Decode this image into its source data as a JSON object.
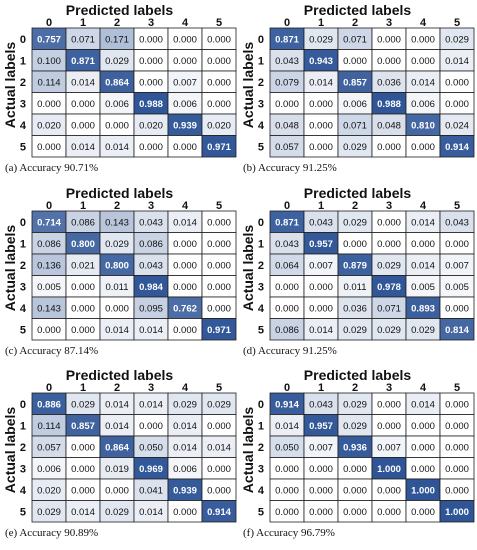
{
  "chart_data": [
    {
      "type": "heatmap",
      "title": "Predicted labels",
      "ylabel": "Actual labels",
      "caption": "(a) Accuracy 90.71%",
      "categories": [
        "0",
        "1",
        "2",
        "3",
        "4",
        "5"
      ],
      "values": [
        [
          "0.757",
          "0.071",
          "0.171",
          "0.000",
          "0.000",
          "0.000"
        ],
        [
          "0.100",
          "0.871",
          "0.029",
          "0.000",
          "0.000",
          "0.000"
        ],
        [
          "0.114",
          "0.014",
          "0.864",
          "0.000",
          "0.007",
          "0.000"
        ],
        [
          "0.000",
          "0.000",
          "0.006",
          "0.988",
          "0.006",
          "0.000"
        ],
        [
          "0.020",
          "0.000",
          "0.000",
          "0.020",
          "0.939",
          "0.020"
        ],
        [
          "0.000",
          "0.014",
          "0.014",
          "0.000",
          "0.000",
          "0.971"
        ]
      ]
    },
    {
      "type": "heatmap",
      "title": "Predicted labels",
      "ylabel": "Actual labels",
      "caption": "(b) Accuracy 91.25%",
      "categories": [
        "0",
        "1",
        "2",
        "3",
        "4",
        "5"
      ],
      "values": [
        [
          "0.871",
          "0.029",
          "0.071",
          "0.000",
          "0.000",
          "0.029"
        ],
        [
          "0.043",
          "0.943",
          "0.000",
          "0.000",
          "0.000",
          "0.014"
        ],
        [
          "0.079",
          "0.014",
          "0.857",
          "0.036",
          "0.014",
          "0.000"
        ],
        [
          "0.000",
          "0.000",
          "0.006",
          "0.988",
          "0.006",
          "0.000"
        ],
        [
          "0.048",
          "0.000",
          "0.071",
          "0.048",
          "0.810",
          "0.024"
        ],
        [
          "0.057",
          "0.000",
          "0.029",
          "0.000",
          "0.000",
          "0.914"
        ]
      ]
    },
    {
      "type": "heatmap",
      "title": "Predicted labels",
      "ylabel": "Actual labels",
      "caption": "(c) Accuracy 87.14%",
      "categories": [
        "0",
        "1",
        "2",
        "3",
        "4",
        "5"
      ],
      "values": [
        [
          "0.714",
          "0.086",
          "0.143",
          "0.043",
          "0.014",
          "0.000"
        ],
        [
          "0.086",
          "0.800",
          "0.029",
          "0.086",
          "0.000",
          "0.000"
        ],
        [
          "0.136",
          "0.021",
          "0.800",
          "0.043",
          "0.000",
          "0.000"
        ],
        [
          "0.005",
          "0.000",
          "0.011",
          "0.984",
          "0.000",
          "0.000"
        ],
        [
          "0.143",
          "0.000",
          "0.000",
          "0.095",
          "0.762",
          "0.000"
        ],
        [
          "0.000",
          "0.000",
          "0.014",
          "0.014",
          "0.000",
          "0.971"
        ]
      ]
    },
    {
      "type": "heatmap",
      "title": "Predicted labels",
      "ylabel": "Actual labels",
      "caption": "(d) Accuracy 91.25%",
      "categories": [
        "0",
        "1",
        "2",
        "3",
        "4",
        "5"
      ],
      "values": [
        [
          "0.871",
          "0.043",
          "0.029",
          "0.000",
          "0.014",
          "0.043"
        ],
        [
          "0.043",
          "0.957",
          "0.000",
          "0.000",
          "0.000",
          "0.000"
        ],
        [
          "0.064",
          "0.007",
          "0.879",
          "0.029",
          "0.014",
          "0.007"
        ],
        [
          "0.000",
          "0.000",
          "0.011",
          "0.978",
          "0.005",
          "0.005"
        ],
        [
          "0.000",
          "0.000",
          "0.036",
          "0.071",
          "0.893",
          "0.000"
        ],
        [
          "0.086",
          "0.014",
          "0.029",
          "0.029",
          "0.029",
          "0.814"
        ]
      ]
    },
    {
      "type": "heatmap",
      "title": "Predicted labels",
      "ylabel": "Actual labels",
      "caption": "(e) Accuracy 90.89%",
      "categories": [
        "0",
        "1",
        "2",
        "3",
        "4",
        "5"
      ],
      "values": [
        [
          "0.886",
          "0.029",
          "0.014",
          "0.014",
          "0.029",
          "0.029"
        ],
        [
          "0.114",
          "0.857",
          "0.014",
          "0.000",
          "0.014",
          "0.000"
        ],
        [
          "0.057",
          "0.000",
          "0.864",
          "0.050",
          "0.014",
          "0.014"
        ],
        [
          "0.006",
          "0.000",
          "0.019",
          "0.969",
          "0.006",
          "0.000"
        ],
        [
          "0.020",
          "0.000",
          "0.000",
          "0.041",
          "0.939",
          "0.000"
        ],
        [
          "0.029",
          "0.014",
          "0.029",
          "0.014",
          "0.000",
          "0.914"
        ]
      ]
    },
    {
      "type": "heatmap",
      "title": "Predicted labels",
      "ylabel": "Actual labels",
      "caption": "(f) Accuracy 96.79%",
      "categories": [
        "0",
        "1",
        "2",
        "3",
        "4",
        "5"
      ],
      "values": [
        [
          "0.914",
          "0.043",
          "0.029",
          "0.000",
          "0.014",
          "0.000"
        ],
        [
          "0.014",
          "0.957",
          "0.029",
          "0.000",
          "0.000",
          "0.000"
        ],
        [
          "0.050",
          "0.007",
          "0.936",
          "0.007",
          "0.000",
          "0.000"
        ],
        [
          "0.000",
          "0.000",
          "0.000",
          "1.000",
          "0.000",
          "0.000"
        ],
        [
          "0.000",
          "0.000",
          "0.000",
          "0.000",
          "1.000",
          "0.000"
        ],
        [
          "0.000",
          "0.000",
          "0.000",
          "0.000",
          "0.000",
          "1.000"
        ]
      ]
    }
  ],
  "colors": {
    "diagonal_high": "#2f5597",
    "high_text": "#ffffff",
    "low_fill": "#ffffff",
    "low_text": "#111111",
    "grid_line": "#1f1f1f"
  }
}
